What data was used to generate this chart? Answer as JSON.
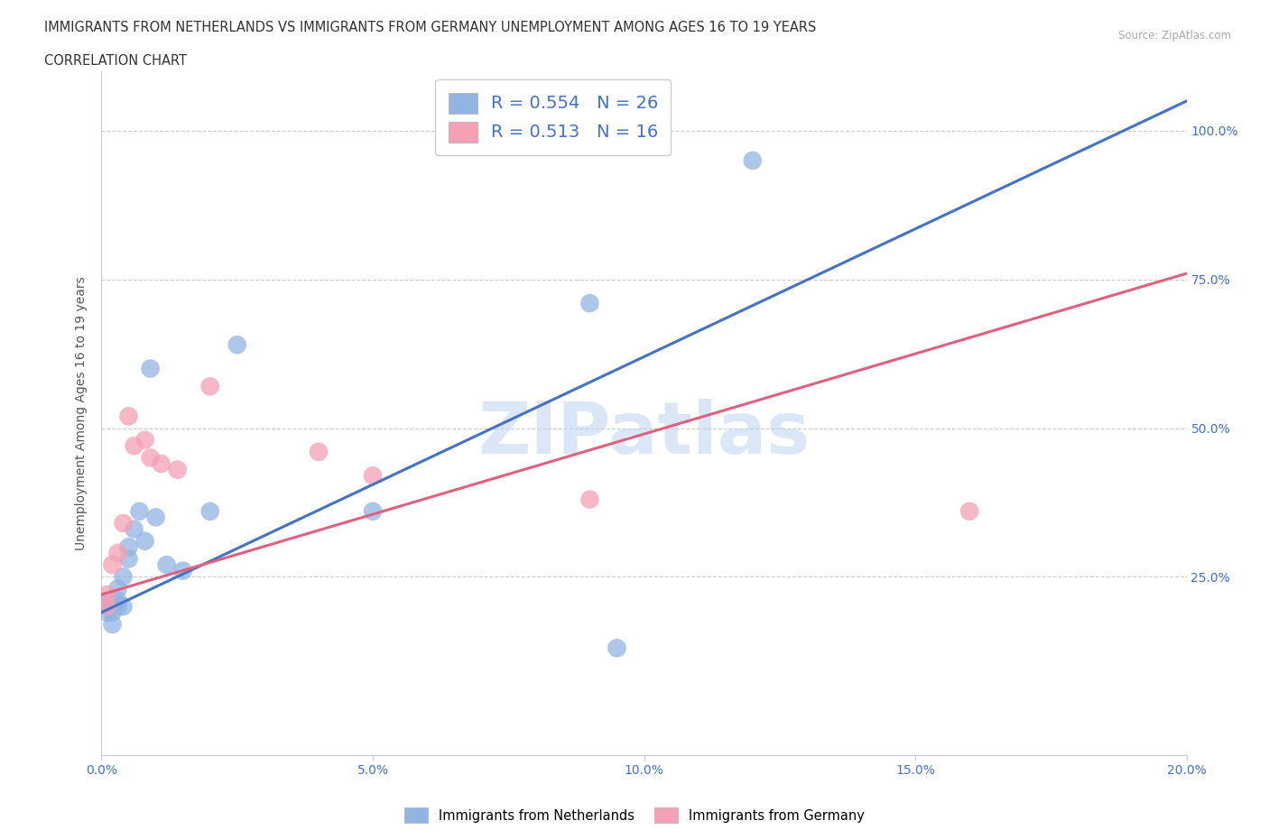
{
  "title_line1": "IMMIGRANTS FROM NETHERLANDS VS IMMIGRANTS FROM GERMANY UNEMPLOYMENT AMONG AGES 16 TO 19 YEARS",
  "title_line2": "CORRELATION CHART",
  "source_text": "Source: ZipAtlas.com",
  "ylabel": "Unemployment Among Ages 16 to 19 years",
  "watermark": "ZIPatlas",
  "legend_label1": "Immigrants from Netherlands",
  "legend_label2": "Immigrants from Germany",
  "r1": 0.554,
  "n1": 26,
  "r2": 0.513,
  "n2": 16,
  "color_netherlands": "#92b4e3",
  "color_germany": "#f4a0b5",
  "line_color_netherlands": "#4472c4",
  "line_color_germany": "#e06080",
  "xmin": 0.0,
  "xmax": 0.2,
  "ymin": -0.05,
  "ymax": 1.1,
  "xticks": [
    0.0,
    0.05,
    0.1,
    0.15,
    0.2
  ],
  "yticks": [
    0.25,
    0.5,
    0.75,
    1.0
  ],
  "nl_line_x": [
    0.0,
    0.2
  ],
  "nl_line_y": [
    0.19,
    1.05
  ],
  "de_line_x": [
    0.0,
    0.2
  ],
  "de_line_y": [
    0.22,
    0.76
  ],
  "netherlands_x": [
    0.001,
    0.001,
    0.001,
    0.002,
    0.002,
    0.002,
    0.003,
    0.003,
    0.003,
    0.004,
    0.004,
    0.005,
    0.005,
    0.006,
    0.007,
    0.008,
    0.009,
    0.01,
    0.012,
    0.015,
    0.02,
    0.025,
    0.05,
    0.09,
    0.095,
    0.12
  ],
  "netherlands_y": [
    0.19,
    0.2,
    0.21,
    0.17,
    0.19,
    0.2,
    0.2,
    0.21,
    0.23,
    0.2,
    0.25,
    0.28,
    0.3,
    0.33,
    0.36,
    0.31,
    0.6,
    0.35,
    0.27,
    0.26,
    0.36,
    0.64,
    0.36,
    0.71,
    0.13,
    0.95
  ],
  "germany_x": [
    0.001,
    0.002,
    0.003,
    0.004,
    0.005,
    0.006,
    0.008,
    0.009,
    0.011,
    0.014,
    0.02,
    0.04,
    0.05,
    0.09,
    0.16,
    0.001
  ],
  "germany_y": [
    0.2,
    0.27,
    0.29,
    0.34,
    0.52,
    0.47,
    0.48,
    0.45,
    0.44,
    0.43,
    0.57,
    0.46,
    0.42,
    0.38,
    0.36,
    0.22
  ]
}
